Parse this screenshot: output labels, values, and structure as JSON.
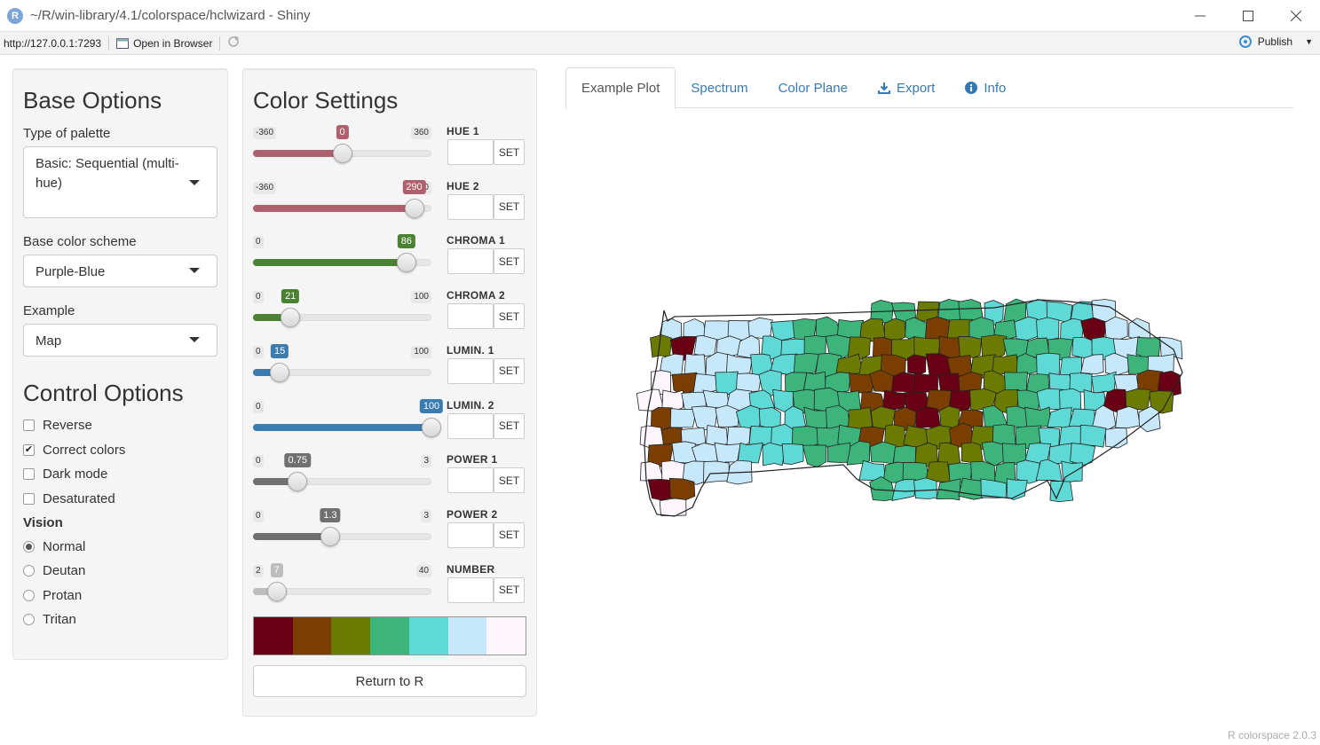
{
  "window": {
    "title": "~/R/win-library/4.1/colorspace/hclwizard - Shiny",
    "logo": "R",
    "url": "http://127.0.0.1:7293",
    "open_in_browser": "Open in Browser",
    "publish": "Publish"
  },
  "base_options": {
    "heading": "Base Options",
    "palette_type_label": "Type of palette",
    "palette_type_value": "Basic: Sequential (multi-hue)",
    "scheme_label": "Base color scheme",
    "scheme_value": "Purple-Blue",
    "example_label": "Example",
    "example_value": "Map"
  },
  "control_options": {
    "heading": "Control Options",
    "checkboxes": [
      {
        "label": "Reverse",
        "checked": false
      },
      {
        "label": "Correct colors",
        "checked": true
      },
      {
        "label": "Dark mode",
        "checked": false
      },
      {
        "label": "Desaturated",
        "checked": false
      }
    ],
    "vision_label": "Vision",
    "vision_options": [
      {
        "label": "Normal",
        "selected": true
      },
      {
        "label": "Deutan",
        "selected": false
      },
      {
        "label": "Protan",
        "selected": false
      },
      {
        "label": "Tritan",
        "selected": false
      }
    ]
  },
  "color_settings": {
    "heading": "Color Settings",
    "set_label": "SET",
    "sliders": [
      {
        "name": "HUE 1",
        "min": "-360",
        "max": "360",
        "value": "0",
        "fraction": 0.5,
        "color": "#b05f6d"
      },
      {
        "name": "HUE 2",
        "min": "-360",
        "max": "360",
        "value": "290",
        "fraction": 0.903,
        "color": "#b05f6d"
      },
      {
        "name": "CHROMA 1",
        "min": "0",
        "max": "",
        "value": "86",
        "fraction": 0.86,
        "color": "#4b8232"
      },
      {
        "name": "CHROMA 2",
        "min": "0",
        "max": "100",
        "value": "21",
        "fraction": 0.21,
        "color": "#4b8232"
      },
      {
        "name": "LUMIN. 1",
        "min": "0",
        "max": "100",
        "value": "15",
        "fraction": 0.15,
        "color": "#3a7bb0"
      },
      {
        "name": "LUMIN. 2",
        "min": "0",
        "max": "",
        "value": "100",
        "fraction": 1.0,
        "color": "#3a7bb0"
      },
      {
        "name": "POWER 1",
        "min": "0",
        "max": "3",
        "value": "0.75",
        "fraction": 0.25,
        "color": "#707070"
      },
      {
        "name": "POWER 2",
        "min": "0",
        "max": "3",
        "value": "1.3",
        "fraction": 0.433,
        "color": "#707070"
      },
      {
        "name": "NUMBER",
        "min": "2",
        "max": "40",
        "value": "7",
        "fraction": 0.132,
        "color": "#bdbdbd"
      }
    ],
    "palette": [
      "#6a0013",
      "#7a3e00",
      "#6b7a00",
      "#3db57a",
      "#5fd9d6",
      "#c7e8fb",
      "#fdf6fd"
    ],
    "return_label": "Return to R"
  },
  "tabs": [
    {
      "label": "Example Plot",
      "active": true,
      "icon": ""
    },
    {
      "label": "Spectrum",
      "active": false,
      "icon": ""
    },
    {
      "label": "Color Plane",
      "active": false,
      "icon": ""
    },
    {
      "label": "Export",
      "active": false,
      "icon": "download-icon"
    },
    {
      "label": "Info",
      "active": false,
      "icon": "info-icon"
    }
  ],
  "footer": "R colorspace 2.0.3"
}
